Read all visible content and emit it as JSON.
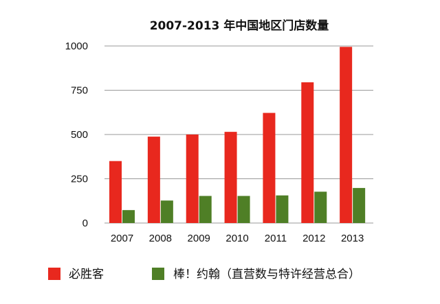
{
  "chart_data": {
    "type": "bar",
    "title": "2007-2013 年中国地区门店数量",
    "xlabel": "",
    "ylabel": "",
    "categories": [
      "2007",
      "2008",
      "2009",
      "2010",
      "2011",
      "2012",
      "2013"
    ],
    "ylim": [
      0,
      1000
    ],
    "yticks": [
      "0",
      "250",
      "500",
      "750",
      "1000"
    ],
    "grid": true,
    "legend_position": "bottom",
    "series": [
      {
        "name": "必胜客",
        "color": "#e8281e",
        "values": [
          350,
          488,
          500,
          515,
          622,
          795,
          995
        ]
      },
      {
        "name": "棒！约翰（直营数与特许经营总合）",
        "color": "#4f7f26",
        "values": [
          73,
          127,
          153,
          153,
          156,
          177,
          198
        ]
      }
    ]
  }
}
